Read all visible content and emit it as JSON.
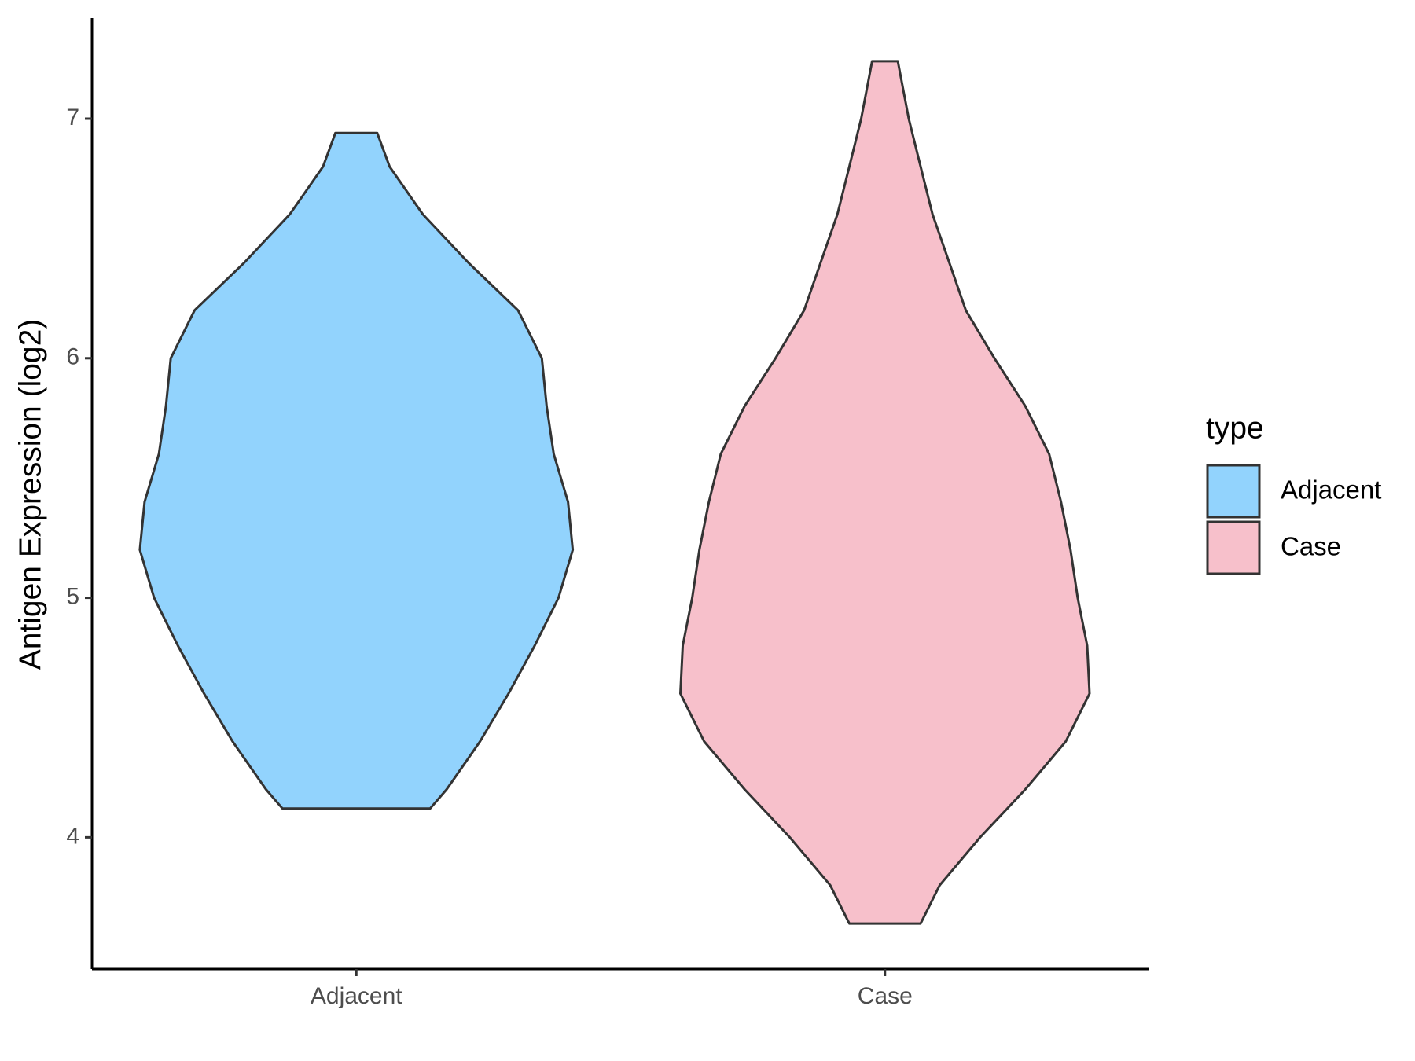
{
  "chart_data": {
    "type": "violin",
    "ylabel": "Antigen Expression (log2)",
    "categories": [
      "Adjacent",
      "Case"
    ],
    "ylim": [
      3.45,
      7.42
    ],
    "yticks": [
      4,
      5,
      6,
      7
    ],
    "legend_title": "type",
    "legend_position": "right",
    "series": [
      {
        "name": "Adjacent",
        "color": "#92d3fd",
        "y": [
          6.94,
          6.8,
          6.6,
          6.4,
          6.2,
          6.0,
          5.8,
          5.6,
          5.4,
          5.2,
          5.0,
          4.8,
          4.6,
          4.4,
          4.2,
          4.12
        ],
        "density": [
          0.088,
          0.14,
          0.28,
          0.47,
          0.68,
          0.78,
          0.8,
          0.83,
          0.89,
          0.91,
          0.85,
          0.75,
          0.64,
          0.52,
          0.38,
          0.31
        ]
      },
      {
        "name": "Case",
        "color": "#f7c0cb",
        "y": [
          7.24,
          7.0,
          6.8,
          6.6,
          6.4,
          6.2,
          6.0,
          5.8,
          5.6,
          5.4,
          5.2,
          5.0,
          4.8,
          4.6,
          4.4,
          4.2,
          4.0,
          3.8,
          3.64
        ],
        "density": [
          0.054,
          0.1,
          0.15,
          0.2,
          0.27,
          0.34,
          0.46,
          0.59,
          0.69,
          0.74,
          0.78,
          0.81,
          0.85,
          0.86,
          0.76,
          0.59,
          0.4,
          0.23,
          0.15
        ]
      }
    ]
  }
}
